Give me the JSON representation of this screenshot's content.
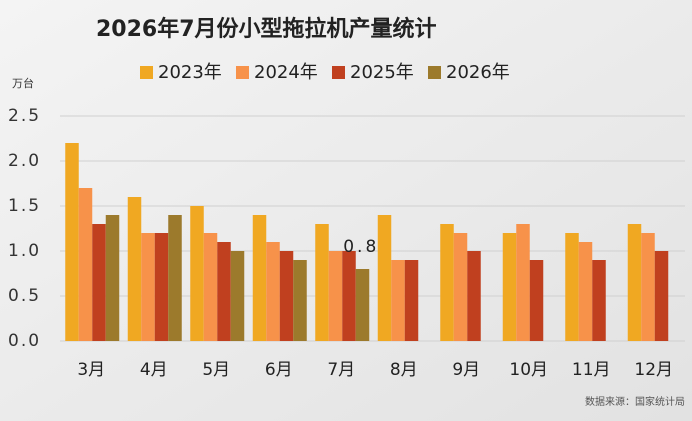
{
  "chart_data": {
    "type": "bar",
    "title": "2026年7月份小型拖拉机产量统计",
    "y_unit": "万台",
    "source": "数据来源：国家统计局",
    "categories": [
      "3月",
      "4月",
      "5月",
      "6月",
      "7月",
      "8月",
      "9月",
      "10月",
      "11月",
      "12月"
    ],
    "series": [
      {
        "name": "2023年",
        "color": "#f0a822",
        "values": [
          2.2,
          1.6,
          1.5,
          1.4,
          1.3,
          1.4,
          1.3,
          1.2,
          1.2,
          1.3
        ]
      },
      {
        "name": "2024年",
        "color": "#f7924a",
        "values": [
          1.7,
          1.2,
          1.2,
          1.1,
          1.0,
          0.9,
          1.2,
          1.3,
          1.1,
          1.2
        ]
      },
      {
        "name": "2025年",
        "color": "#c0401f",
        "values": [
          1.3,
          1.2,
          1.1,
          1.0,
          1.0,
          0.9,
          1.0,
          0.9,
          0.9,
          1.0
        ]
      },
      {
        "name": "2026年",
        "color": "#9c7a2c",
        "values": [
          1.4,
          1.4,
          1.0,
          0.9,
          0.8,
          null,
          null,
          null,
          null,
          null
        ]
      }
    ],
    "ylim": [
      0,
      2.5
    ],
    "yticks": [
      {
        "value": 0,
        "label": "0.0"
      },
      0.5,
      {
        "value": 1,
        "label": "1.0"
      },
      1.5,
      {
        "value": 2,
        "label": "2.0"
      },
      2.5
    ],
    "grid": true
  }
}
